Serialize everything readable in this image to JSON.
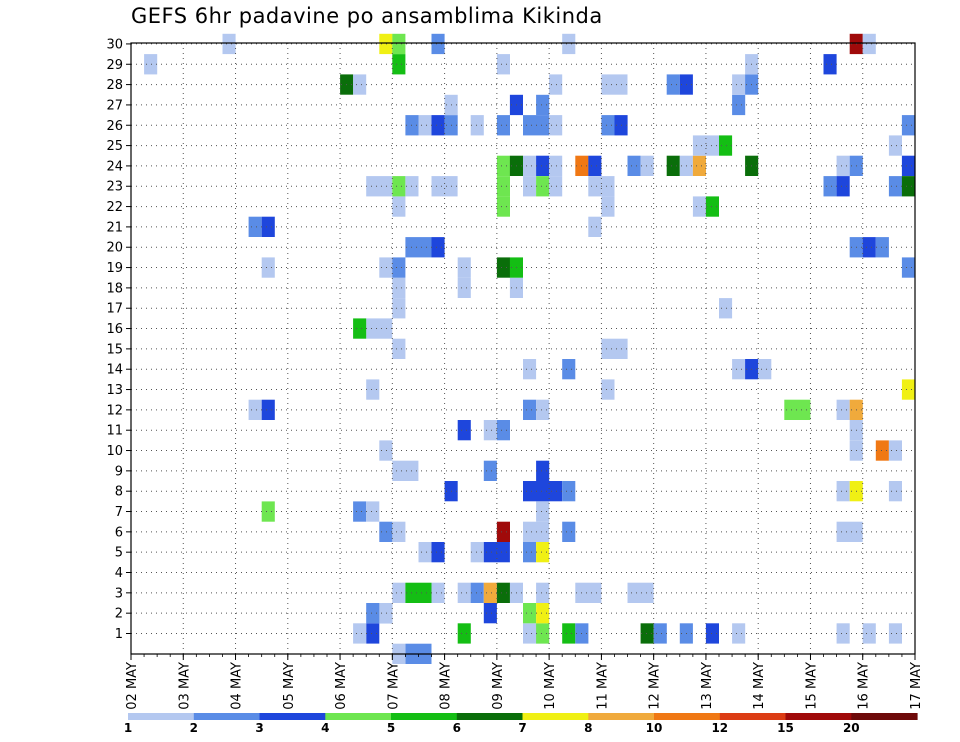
{
  "chart_data": {
    "type": "heatmap",
    "title": "GEFS 6hr padavine po ansamblima Kikinda",
    "xlabel": "",
    "ylabel": "",
    "y_ticks": [
      "1",
      "2",
      "3",
      "4",
      "5",
      "6",
      "7",
      "8",
      "9",
      "10",
      "11",
      "12",
      "13",
      "14",
      "15",
      "16",
      "17",
      "18",
      "19",
      "20",
      "21",
      "22",
      "23",
      "24",
      "25",
      "26",
      "27",
      "28",
      "29",
      "30"
    ],
    "x_ticks": [
      "02 MAY",
      "03 MAY",
      "04 MAY",
      "05 MAY",
      "06 MAY",
      "07 MAY",
      "08 MAY",
      "09 MAY",
      "10 MAY",
      "11 MAY",
      "12 MAY",
      "13 MAY",
      "14 MAY",
      "15 MAY",
      "16 MAY",
      "17 MAY"
    ],
    "x_step_hours": 6,
    "x_start": "02 MAY 00Z",
    "grid": true,
    "colorbar": {
      "labels": [
        "1",
        "2",
        "3",
        "4",
        "5",
        "6",
        "7",
        "8",
        "10",
        "12",
        "15",
        "20"
      ],
      "colors": [
        "#b4c8f0",
        "#5a8ce6",
        "#1e46dc",
        "#6ee650",
        "#14be14",
        "#0a6e0a",
        "#f0f014",
        "#f0aa3c",
        "#f07814",
        "#dc3c14",
        "#a00a0a",
        "#6e0a0a"
      ]
    },
    "cells": [
      [
        6.5,
        1,
        1,
        "#1e46dc"
      ],
      [
        6.25,
        1,
        1,
        "#b4c8f0"
      ],
      [
        8.25,
        1,
        1,
        "#14be14"
      ],
      [
        9.5,
        1,
        2,
        "#b4c8f0"
      ],
      [
        9.75,
        1,
        1,
        "#6ee650"
      ],
      [
        10.25,
        1,
        1,
        "#14be14"
      ],
      [
        10.5,
        1,
        1,
        "#5a8ce6"
      ],
      [
        11.75,
        1,
        1,
        "#0a6e0a"
      ],
      [
        12.0,
        1,
        1,
        "#5a8ce6"
      ],
      [
        12.5,
        1,
        1,
        "#5a8ce6"
      ],
      [
        13.0,
        1,
        1,
        "#1e46dc"
      ],
      [
        13.5,
        1,
        1,
        "#b4c8f0"
      ],
      [
        15.5,
        1,
        1,
        "#b4c8f0"
      ],
      [
        16.0,
        1,
        1,
        "#b4c8f0"
      ],
      [
        16.5,
        1,
        1,
        "#b4c8f0"
      ],
      [
        6.5,
        2,
        2,
        "#5a8ce6"
      ],
      [
        6.75,
        2,
        1,
        "#b4c8f0"
      ],
      [
        8.75,
        2,
        1,
        "#1e46dc"
      ],
      [
        9.5,
        2,
        1,
        "#6ee650"
      ],
      [
        9.75,
        2,
        1,
        "#f0f014"
      ],
      [
        7.0,
        3,
        1,
        "#b4c8f0"
      ],
      [
        7.25,
        3,
        2,
        "#14be14"
      ],
      [
        7.75,
        3,
        1,
        "#b4c8f0"
      ],
      [
        8.25,
        3,
        1,
        "#b4c8f0"
      ],
      [
        8.5,
        3,
        1,
        "#5a8ce6"
      ],
      [
        8.75,
        3,
        1,
        "#f0aa3c"
      ],
      [
        9.0,
        3,
        1,
        "#0a6e0a"
      ],
      [
        9.25,
        3,
        1,
        "#b4c8f0"
      ],
      [
        9.75,
        3,
        1,
        "#b4c8f0"
      ],
      [
        10.5,
        3,
        2,
        "#b4c8f0"
      ],
      [
        11.5,
        3,
        2,
        "#b4c8f0"
      ],
      [
        7.5,
        5,
        1,
        "#b4c8f0"
      ],
      [
        7.75,
        5,
        1,
        "#1e46dc"
      ],
      [
        8.5,
        5,
        1,
        "#b4c8f0"
      ],
      [
        8.75,
        5,
        2,
        "#1e46dc"
      ],
      [
        9.5,
        5,
        1,
        "#5a8ce6"
      ],
      [
        9.75,
        5,
        1,
        "#f0f014"
      ],
      [
        6.75,
        6,
        1,
        "#5a8ce6"
      ],
      [
        7.0,
        6,
        1,
        "#b4c8f0"
      ],
      [
        9.0,
        6,
        1,
        "#a00a0a"
      ],
      [
        9.5,
        6,
        2,
        "#b4c8f0"
      ],
      [
        10.25,
        6,
        1,
        "#5a8ce6"
      ],
      [
        15.5,
        6,
        2,
        "#b4c8f0"
      ],
      [
        4.5,
        7,
        1,
        "#6ee650"
      ],
      [
        6.25,
        7,
        1,
        "#5a8ce6"
      ],
      [
        6.5,
        7,
        1,
        "#b4c8f0"
      ],
      [
        9.75,
        7,
        1,
        "#b4c8f0"
      ],
      [
        8.0,
        8,
        1,
        "#1e46dc"
      ],
      [
        9.5,
        8,
        3,
        "#1e46dc"
      ],
      [
        10.25,
        8,
        1,
        "#5a8ce6"
      ],
      [
        15.5,
        8,
        1,
        "#b4c8f0"
      ],
      [
        15.75,
        8,
        1,
        "#f0f014"
      ],
      [
        16.5,
        8,
        1,
        "#b4c8f0"
      ],
      [
        7.0,
        9,
        2,
        "#b4c8f0"
      ],
      [
        8.75,
        9,
        1,
        "#5a8ce6"
      ],
      [
        9.75,
        9,
        1,
        "#1e46dc"
      ],
      [
        6.75,
        10,
        1,
        "#b4c8f0"
      ],
      [
        15.75,
        10,
        1,
        "#b4c8f0"
      ],
      [
        16.25,
        10,
        1,
        "#f07814"
      ],
      [
        16.5,
        10,
        1,
        "#b4c8f0"
      ],
      [
        8.25,
        11,
        1,
        "#1e46dc"
      ],
      [
        8.75,
        11,
        1,
        "#b4c8f0"
      ],
      [
        9.0,
        11,
        1,
        "#5a8ce6"
      ],
      [
        15.75,
        11,
        1,
        "#b4c8f0"
      ],
      [
        4.25,
        12,
        1,
        "#b4c8f0"
      ],
      [
        4.5,
        12,
        1,
        "#1e46dc"
      ],
      [
        9.5,
        12,
        1,
        "#5a8ce6"
      ],
      [
        9.75,
        12,
        1,
        "#b4c8f0"
      ],
      [
        14.5,
        12,
        2,
        "#6ee650"
      ],
      [
        15.5,
        12,
        1,
        "#b4c8f0"
      ],
      [
        15.75,
        12,
        1,
        "#f0aa3c"
      ],
      [
        6.5,
        13,
        1,
        "#b4c8f0"
      ],
      [
        11.0,
        13,
        1,
        "#b4c8f0"
      ],
      [
        16.75,
        13,
        1,
        "#f0f014"
      ],
      [
        9.5,
        14,
        1,
        "#b4c8f0"
      ],
      [
        10.25,
        14,
        1,
        "#5a8ce6"
      ],
      [
        13.5,
        14,
        1,
        "#b4c8f0"
      ],
      [
        13.75,
        14,
        1,
        "#1e46dc"
      ],
      [
        14.0,
        14,
        1,
        "#b4c8f0"
      ],
      [
        7.0,
        15,
        1,
        "#b4c8f0"
      ],
      [
        11.0,
        15,
        1,
        "#b4c8f0"
      ],
      [
        11.25,
        15,
        1,
        "#b4c8f0"
      ],
      [
        6.5,
        16,
        2,
        "#b4c8f0"
      ],
      [
        6.25,
        16,
        1,
        "#14be14"
      ],
      [
        7.0,
        17,
        1,
        "#b4c8f0"
      ],
      [
        13.25,
        17,
        1,
        "#b4c8f0"
      ],
      [
        7.0,
        18,
        1,
        "#b4c8f0"
      ],
      [
        8.25,
        18,
        1,
        "#b4c8f0"
      ],
      [
        9.25,
        18,
        1,
        "#b4c8f0"
      ],
      [
        4.5,
        19,
        1,
        "#b4c8f0"
      ],
      [
        6.75,
        19,
        1,
        "#b4c8f0"
      ],
      [
        7.0,
        19,
        1,
        "#5a8ce6"
      ],
      [
        8.25,
        19,
        1,
        "#b4c8f0"
      ],
      [
        9.0,
        19,
        1,
        "#0a6e0a"
      ],
      [
        9.25,
        19,
        1,
        "#14be14"
      ],
      [
        16.75,
        19,
        1,
        "#5a8ce6"
      ],
      [
        7.25,
        20,
        2,
        "#5a8ce6"
      ],
      [
        7.75,
        20,
        1,
        "#1e46dc"
      ],
      [
        15.75,
        20,
        1,
        "#5a8ce6"
      ],
      [
        16.0,
        20,
        1,
        "#1e46dc"
      ],
      [
        16.25,
        20,
        1,
        "#5a8ce6"
      ],
      [
        4.25,
        21,
        1,
        "#5a8ce6"
      ],
      [
        4.5,
        21,
        1,
        "#1e46dc"
      ],
      [
        10.75,
        21,
        1,
        "#b4c8f0"
      ],
      [
        7.0,
        22,
        1,
        "#b4c8f0"
      ],
      [
        9.0,
        22,
        1,
        "#6ee650"
      ],
      [
        11.0,
        22,
        1,
        "#b4c8f0"
      ],
      [
        12.75,
        22,
        1,
        "#b4c8f0"
      ],
      [
        13.0,
        22,
        1,
        "#14be14"
      ],
      [
        6.5,
        23,
        2,
        "#b4c8f0"
      ],
      [
        7.0,
        23,
        1,
        "#6ee650"
      ],
      [
        7.25,
        23,
        1,
        "#b4c8f0"
      ],
      [
        7.75,
        23,
        2,
        "#b4c8f0"
      ],
      [
        9.0,
        23,
        1,
        "#6ee650"
      ],
      [
        9.5,
        23,
        1,
        "#b4c8f0"
      ],
      [
        9.75,
        23,
        1,
        "#6ee650"
      ],
      [
        10.0,
        23,
        1,
        "#b4c8f0"
      ],
      [
        10.75,
        23,
        1,
        "#b4c8f0"
      ],
      [
        11.0,
        23,
        1,
        "#b4c8f0"
      ],
      [
        15.25,
        23,
        1,
        "#5a8ce6"
      ],
      [
        15.5,
        23,
        1,
        "#1e46dc"
      ],
      [
        16.5,
        23,
        1,
        "#5a8ce6"
      ],
      [
        16.75,
        23,
        1,
        "#0a6e0a"
      ],
      [
        9.0,
        24,
        1,
        "#6ee650"
      ],
      [
        9.25,
        24,
        1,
        "#0a6e0a"
      ],
      [
        9.5,
        24,
        1,
        "#b4c8f0"
      ],
      [
        9.75,
        24,
        1,
        "#1e46dc"
      ],
      [
        10.0,
        24,
        1,
        "#b4c8f0"
      ],
      [
        10.5,
        24,
        1,
        "#f07814"
      ],
      [
        10.75,
        24,
        1,
        "#1e46dc"
      ],
      [
        11.5,
        24,
        1,
        "#5a8ce6"
      ],
      [
        11.75,
        24,
        1,
        "#b4c8f0"
      ],
      [
        12.25,
        24,
        1,
        "#0a6e0a"
      ],
      [
        12.5,
        24,
        1,
        "#b4c8f0"
      ],
      [
        12.75,
        24,
        1,
        "#f0aa3c"
      ],
      [
        13.75,
        24,
        1,
        "#0a6e0a"
      ],
      [
        15.5,
        24,
        1,
        "#b4c8f0"
      ],
      [
        15.75,
        24,
        1,
        "#5a8ce6"
      ],
      [
        16.75,
        24,
        1,
        "#1e46dc"
      ],
      [
        12.75,
        25,
        2,
        "#b4c8f0"
      ],
      [
        13.25,
        25,
        1,
        "#14be14"
      ],
      [
        16.5,
        25,
        1,
        "#b4c8f0"
      ],
      [
        7.25,
        26,
        1,
        "#5a8ce6"
      ],
      [
        7.5,
        26,
        1,
        "#b4c8f0"
      ],
      [
        7.75,
        26,
        1,
        "#1e46dc"
      ],
      [
        8.0,
        26,
        1,
        "#5a8ce6"
      ],
      [
        8.5,
        26,
        1,
        "#b4c8f0"
      ],
      [
        9.0,
        26,
        1,
        "#5a8ce6"
      ],
      [
        9.5,
        26,
        2,
        "#5a8ce6"
      ],
      [
        10.0,
        26,
        1,
        "#b4c8f0"
      ],
      [
        11.0,
        26,
        1,
        "#5a8ce6"
      ],
      [
        11.25,
        26,
        1,
        "#1e46dc"
      ],
      [
        16.75,
        26,
        1,
        "#5a8ce6"
      ],
      [
        8.0,
        27,
        1,
        "#b4c8f0"
      ],
      [
        9.25,
        27,
        1,
        "#1e46dc"
      ],
      [
        9.75,
        27,
        1,
        "#5a8ce6"
      ],
      [
        13.5,
        27,
        1,
        "#5a8ce6"
      ],
      [
        6.0,
        28,
        1,
        "#0a6e0a"
      ],
      [
        6.25,
        28,
        1,
        "#b4c8f0"
      ],
      [
        10.0,
        28,
        1,
        "#b4c8f0"
      ],
      [
        11.0,
        28,
        2,
        "#b4c8f0"
      ],
      [
        12.25,
        28,
        1,
        "#5a8ce6"
      ],
      [
        12.5,
        28,
        1,
        "#1e46dc"
      ],
      [
        13.5,
        28,
        1,
        "#b4c8f0"
      ],
      [
        13.75,
        28,
        1,
        "#5a8ce6"
      ],
      [
        2.25,
        29,
        1,
        "#b4c8f0"
      ],
      [
        7.0,
        29,
        1,
        "#14be14"
      ],
      [
        9.0,
        29,
        1,
        "#b4c8f0"
      ],
      [
        13.75,
        29,
        1,
        "#b4c8f0"
      ],
      [
        15.25,
        29,
        1,
        "#1e46dc"
      ],
      [
        3.75,
        30,
        1,
        "#b4c8f0"
      ],
      [
        6.75,
        30,
        1,
        "#f0f014"
      ],
      [
        7.0,
        30,
        1,
        "#6ee650"
      ],
      [
        7.75,
        30,
        1,
        "#5a8ce6"
      ],
      [
        10.25,
        30,
        1,
        "#b4c8f0"
      ],
      [
        15.75,
        30,
        1,
        "#a00a0a"
      ],
      [
        16.0,
        30,
        1,
        "#b4c8f0"
      ],
      [
        7.25,
        0,
        2,
        "#5a8ce6"
      ],
      [
        7.0,
        0,
        1,
        "#b4c8f0"
      ]
    ]
  }
}
